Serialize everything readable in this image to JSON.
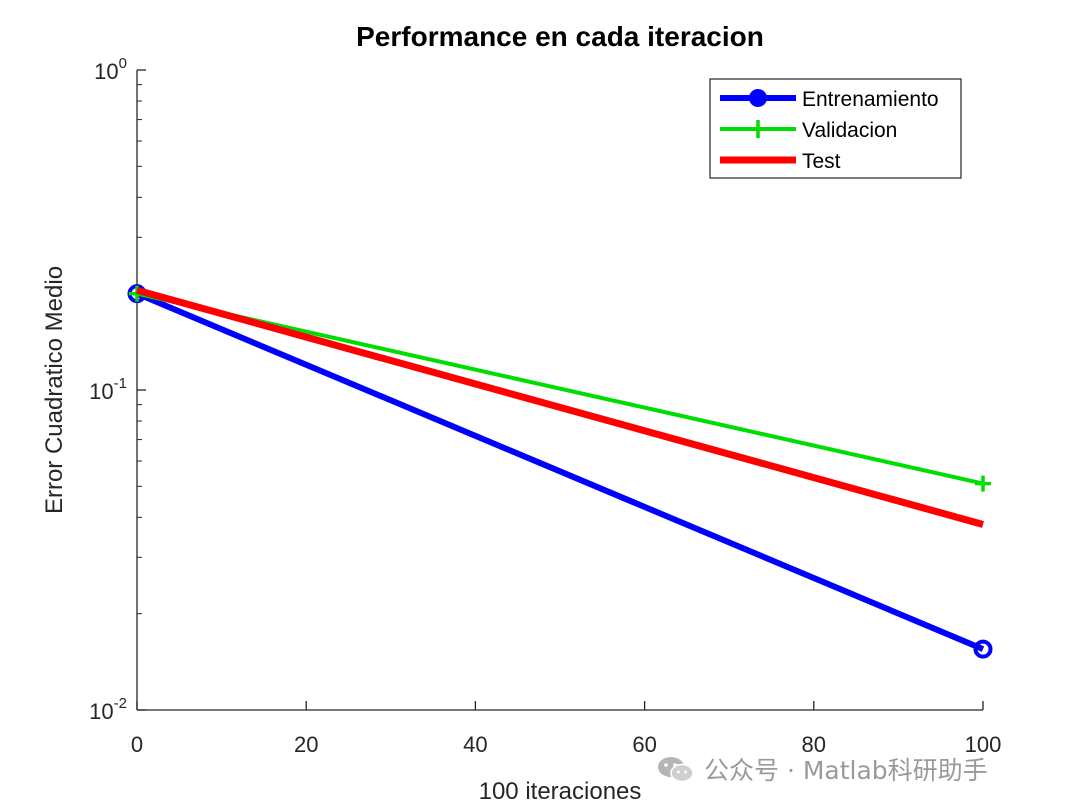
{
  "chart_data": {
    "type": "line",
    "title": "Performance en cada iteracion",
    "xlabel": "100 iteraciones",
    "ylabel": "Error Cuadratico Medio",
    "xlim": [
      0,
      100
    ],
    "ylim": [
      0.01,
      1
    ],
    "yscale": "log",
    "xticks": [
      0,
      20,
      40,
      60,
      80,
      100
    ],
    "xtick_labels": [
      "0",
      "20",
      "40",
      "60",
      "80",
      "100"
    ],
    "yticks": [
      {
        "value": 1,
        "base": "10",
        "exp": "0"
      },
      {
        "value": 0.1,
        "base": "10",
        "exp": "-1"
      },
      {
        "value": 0.01,
        "base": "10",
        "exp": "-2"
      }
    ],
    "legend_position": "top-right",
    "series": [
      {
        "name": "Entrenamiento",
        "x": [
          0,
          100
        ],
        "y": [
          0.2,
          0.0155
        ],
        "color": "#0000FF",
        "marker": "circle"
      },
      {
        "name": "Validacion",
        "x": [
          0,
          100
        ],
        "y": [
          0.2,
          0.051
        ],
        "color": "#00DD00",
        "marker": "plus"
      },
      {
        "name": "Test",
        "x": [
          0,
          100
        ],
        "y": [
          0.205,
          0.038
        ],
        "color": "#FF0000",
        "marker": "none"
      }
    ]
  },
  "watermark": {
    "text": "公众号 · Matlab科研助手",
    "icon": "wechat-icon"
  }
}
